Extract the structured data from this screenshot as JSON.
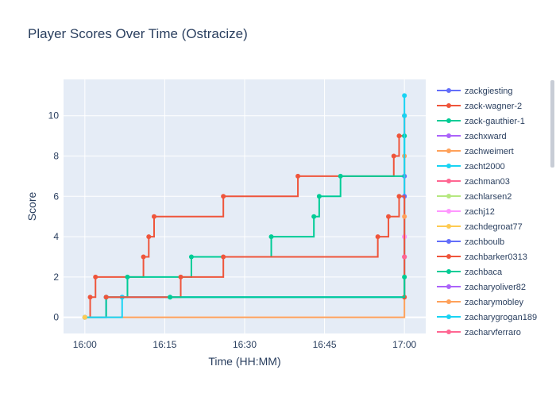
{
  "chart_data": {
    "type": "line",
    "title": "Player Scores Over Time (Ostracize)",
    "xlabel": "Time (HH:MM)",
    "ylabel": "Score",
    "x_unit": "HH:MM",
    "xlim": [
      "15:56",
      "17:04"
    ],
    "ylim": [
      -0.8,
      11.8
    ],
    "xticks": [
      "16:00",
      "16:15",
      "16:30",
      "16:45",
      "17:00"
    ],
    "yticks": [
      0,
      2,
      4,
      6,
      8,
      10
    ],
    "line_shape": "step",
    "grid": true,
    "legend_position": "right",
    "series": [
      {
        "name": "zackgiesting",
        "color": "#636efa",
        "points": [
          [
            "16:00",
            0
          ],
          [
            "16:04",
            1
          ],
          [
            "16:07",
            1
          ],
          [
            "17:00",
            7
          ]
        ]
      },
      {
        "name": "zack-wagner-2",
        "color": "#ef553b",
        "points": [
          [
            "16:00",
            0
          ],
          [
            "16:01",
            1
          ],
          [
            "16:02",
            2
          ],
          [
            "16:11",
            3
          ],
          [
            "16:12",
            4
          ],
          [
            "16:13",
            5
          ],
          [
            "16:26",
            6
          ],
          [
            "16:40",
            7
          ],
          [
            "16:58",
            8
          ],
          [
            "16:59",
            9
          ],
          [
            "17:00",
            10
          ]
        ]
      },
      {
        "name": "zack-gauthier-1",
        "color": "#00cc96",
        "points": [
          [
            "16:00",
            0
          ],
          [
            "16:04",
            1
          ],
          [
            "16:08",
            2
          ],
          [
            "16:20",
            3
          ],
          [
            "16:35",
            4
          ],
          [
            "16:43",
            5
          ],
          [
            "16:44",
            6
          ],
          [
            "16:48",
            7
          ],
          [
            "17:00",
            9
          ]
        ]
      },
      {
        "name": "zachxward",
        "color": "#ab63fa",
        "points": [
          [
            "17:00",
            4
          ]
        ]
      },
      {
        "name": "zachweimert",
        "color": "#ffa15a",
        "points": [
          [
            "16:00",
            0
          ],
          [
            "17:00",
            8
          ]
        ]
      },
      {
        "name": "zacht2000",
        "color": "#19d3f3",
        "points": [
          [
            "16:00",
            0
          ],
          [
            "16:07",
            1
          ],
          [
            "16:16",
            1
          ],
          [
            "17:00",
            11
          ]
        ]
      },
      {
        "name": "zachman03",
        "color": "#ff6692",
        "points": [
          [
            "17:00",
            3
          ]
        ]
      },
      {
        "name": "zachlarsen2",
        "color": "#b6e880",
        "points": [
          [
            "17:00",
            2
          ]
        ]
      },
      {
        "name": "zachj12",
        "color": "#ff97ff",
        "points": [
          [
            "17:00",
            4
          ]
        ]
      },
      {
        "name": "zachdegroat77",
        "color": "#fecb52",
        "points": [
          [
            "16:00",
            0
          ]
        ]
      },
      {
        "name": "zachboulb",
        "color": "#636efa",
        "points": [
          [
            "17:00",
            6
          ]
        ]
      },
      {
        "name": "zachbarker0313",
        "color": "#ef553b",
        "points": [
          [
            "16:04",
            1
          ],
          [
            "16:18",
            2
          ],
          [
            "16:26",
            3
          ],
          [
            "16:55",
            4
          ],
          [
            "16:57",
            5
          ],
          [
            "16:59",
            6
          ],
          [
            "17:00",
            1
          ]
        ]
      },
      {
        "name": "zachbaca",
        "color": "#00cc96",
        "points": [
          [
            "16:16",
            1
          ],
          [
            "17:00",
            2
          ]
        ]
      },
      {
        "name": "zacharyoliver82",
        "color": "#ab63fa",
        "points": [
          [
            "17:00",
            3
          ]
        ]
      },
      {
        "name": "zacharymobley",
        "color": "#ffa15a",
        "points": [
          [
            "17:00",
            5
          ]
        ]
      },
      {
        "name": "zacharygrogan189",
        "color": "#19d3f3",
        "points": [
          [
            "17:00",
            10
          ]
        ]
      },
      {
        "name": "zacharyferraro",
        "color": "#ff6692",
        "points": [
          [
            "17:00",
            3
          ]
        ]
      }
    ]
  }
}
